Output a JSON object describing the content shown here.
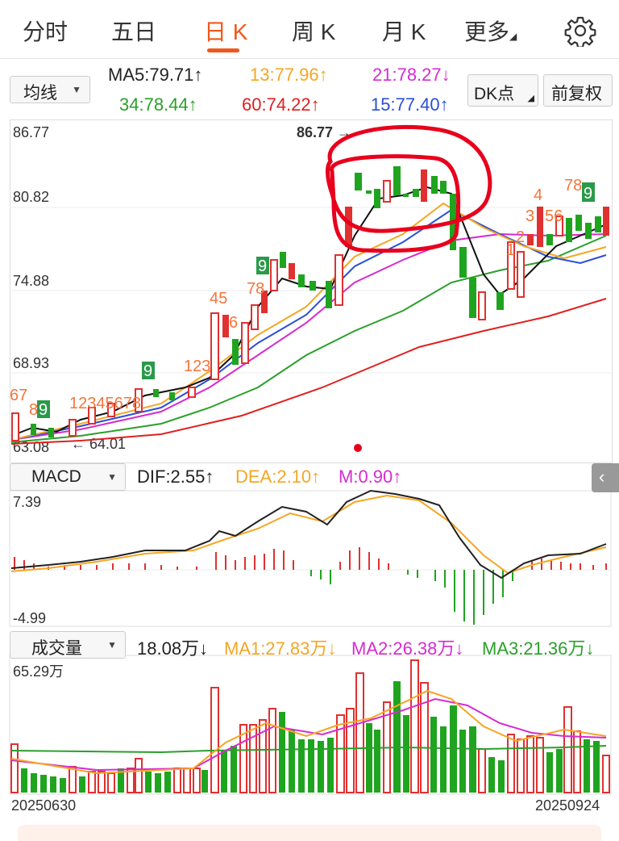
{
  "tabs": [
    {
      "label": "分时",
      "active": false
    },
    {
      "label": "五日",
      "active": false
    },
    {
      "label": "日 K",
      "active": true
    },
    {
      "label": "周 K",
      "active": false
    },
    {
      "label": "月 K",
      "active": false
    },
    {
      "label": "更多",
      "active": false
    }
  ],
  "ma_header": {
    "selector": "均线",
    "line1": [
      {
        "text": "MA5:79.71↑",
        "color": "#222222"
      },
      {
        "text": "13:77.96↑",
        "color": "#f5a623"
      },
      {
        "text": "21:78.27↓",
        "color": "#d62bd0"
      }
    ],
    "line2": [
      {
        "text": "34:78.44↑",
        "color": "#2aa02a"
      },
      {
        "text": "60:74.22↑",
        "color": "#e02020"
      },
      {
        "text": "15:77.40↑",
        "color": "#2b4fd8"
      }
    ],
    "dk_button": "DK点",
    "fq_button": "前复权"
  },
  "kline_axis": {
    "ticks": [
      "86.77",
      "80.82",
      "74.88",
      "68.93",
      "63.08"
    ],
    "high_label": "86.77",
    "low_label": "64.01"
  },
  "macd": {
    "selector": "MACD",
    "dif": "DIF:2.55↑",
    "dea": "DEA:2.10↑",
    "m": "M:0.90↑",
    "top": "7.39",
    "bottom": "-4.99"
  },
  "volume": {
    "selector": "成交量",
    "value": "18.08万↓",
    "ma1": "MA1:27.83万↓",
    "ma2": "MA2:26.38万↓",
    "ma3": "MA3:21.36万↓",
    "top": "65.29万",
    "date_start": "20250630",
    "date_end": "20250924"
  },
  "colors": {
    "up": "#e03030",
    "down": "#1fa41f",
    "accent": "#f0581c",
    "annotation": "#e8001c"
  },
  "icons": {
    "settings": "gear-icon",
    "collapse": "chevron-left-icon"
  }
}
